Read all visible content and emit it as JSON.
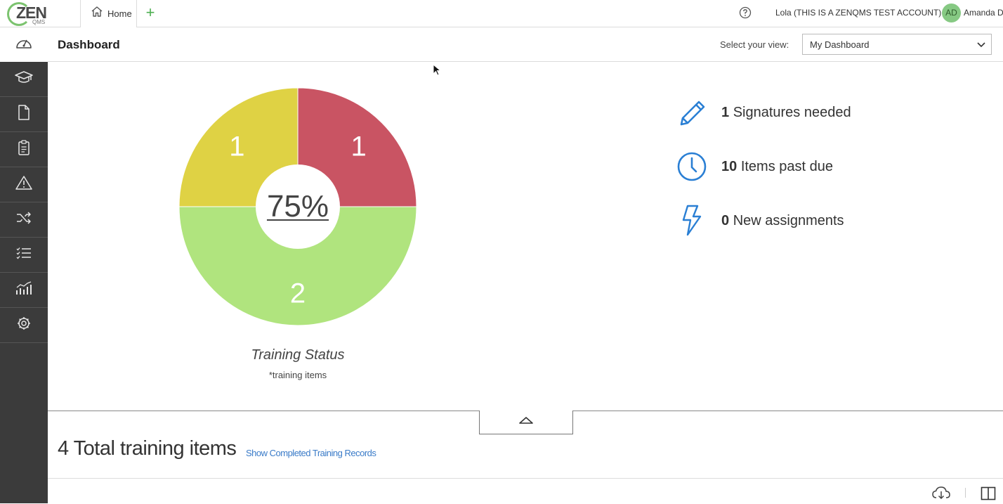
{
  "app": {
    "logo_text": "ZEN",
    "logo_sub": "QMS",
    "home_tab": "Home",
    "add_tab": "+",
    "account": "Lola (THIS IS A ZENQMS TEST ACCOUNT)",
    "avatar_initials": "AD",
    "username": "Amanda D"
  },
  "header": {
    "title": "Dashboard",
    "view_label": "Select your view:",
    "view_selected": "My Dashboard"
  },
  "sidebar": {
    "items": [
      {
        "icon": "graduation-cap-icon"
      },
      {
        "icon": "document-icon"
      },
      {
        "icon": "clipboard-icon"
      },
      {
        "icon": "warning-icon"
      },
      {
        "icon": "shuffle-icon"
      },
      {
        "icon": "checklist-icon"
      },
      {
        "icon": "analytics-icon"
      },
      {
        "icon": "gear-icon"
      }
    ]
  },
  "chart_data": {
    "type": "pie",
    "title": "Training Status",
    "subtitle": "*training items",
    "center_label": "75%",
    "slices": [
      {
        "value": 1,
        "label": "1",
        "color": "#c95463"
      },
      {
        "value": 2,
        "label": "2",
        "color": "#b0e47e"
      },
      {
        "value": 1,
        "label": "1",
        "color": "#dfd244"
      }
    ]
  },
  "stats": [
    {
      "count": "1",
      "label": "Signatures needed",
      "icon": "pencil-icon"
    },
    {
      "count": "10",
      "label": "Items past due",
      "icon": "clock-icon"
    },
    {
      "count": "0",
      "label": "New assignments",
      "icon": "lightning-icon"
    }
  ],
  "summary": {
    "total": "4 Total training items",
    "link": "Show Completed Training Records"
  },
  "colors": {
    "accent_blue": "#2a7fd4",
    "sidebar_bg": "#3b3b3b",
    "link": "#3a7bc8"
  }
}
